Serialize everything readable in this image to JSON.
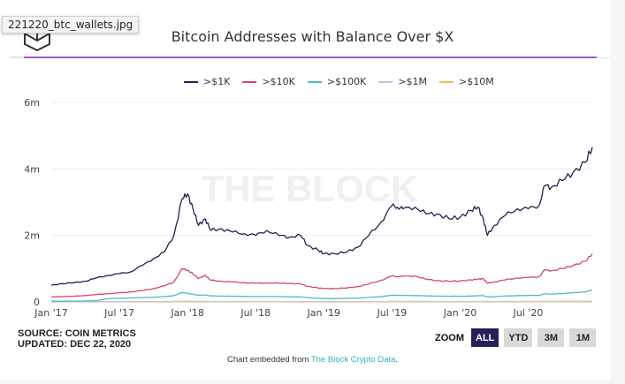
{
  "tooltip": {
    "filename": "221220_btc_wallets.jpg"
  },
  "header": {
    "title": "Bitcoin Addresses with Balance Over $X",
    "logo_icon": "the-block-cube-logo"
  },
  "footer": {
    "source": "SOURCE: COIN METRICS",
    "updated": "UPDATED: DEC 22, 2020",
    "embedded_prefix": "Chart embedded from ",
    "embedded_link": "The Block Crypto Data",
    "embedded_suffix": "."
  },
  "zoom": {
    "label": "ZOOM",
    "buttons": [
      {
        "label": "ALL",
        "active": true
      },
      {
        "label": "YTD",
        "active": false
      },
      {
        "label": "3M",
        "active": false
      },
      {
        "label": "1M",
        "active": false
      }
    ]
  },
  "watermark": "THE BLOCK",
  "chart_data": {
    "type": "line",
    "title": "Bitcoin Addresses with Balance Over $X",
    "xlabel": "",
    "ylabel": "",
    "x_range": [
      "2017-01-01",
      "2020-12-22"
    ],
    "ylim": [
      0,
      6000000
    ],
    "y_ticks": [
      0,
      2000000,
      4000000,
      6000000
    ],
    "y_tick_labels": [
      "0",
      "2m",
      "4m",
      "6m"
    ],
    "x_tick_labels": [
      "Jan '17",
      "Jul '17",
      "Jan '18",
      "Jul '18",
      "Jan '19",
      "Jul '19",
      "Jan '20",
      "Jul '20"
    ],
    "grid": true,
    "legend_position": "top-center",
    "x": [
      2017.0,
      2017.08,
      2017.17,
      2017.25,
      2017.33,
      2017.42,
      2017.5,
      2017.58,
      2017.67,
      2017.75,
      2017.83,
      2017.9,
      2017.96,
      2018.0,
      2018.04,
      2018.08,
      2018.13,
      2018.17,
      2018.25,
      2018.33,
      2018.42,
      2018.5,
      2018.58,
      2018.67,
      2018.75,
      2018.83,
      2018.88,
      2018.96,
      2019.0,
      2019.08,
      2019.17,
      2019.25,
      2019.33,
      2019.42,
      2019.5,
      2019.54,
      2019.58,
      2019.67,
      2019.75,
      2019.83,
      2019.92,
      2020.0,
      2020.08,
      2020.13,
      2020.17,
      2020.2,
      2020.25,
      2020.33,
      2020.42,
      2020.5,
      2020.58,
      2020.62,
      2020.67,
      2020.75,
      2020.83,
      2020.92,
      2020.97
    ],
    "series": [
      {
        "name": ">$1K",
        "color": "#24214f",
        "values": [
          500000,
          550000,
          580000,
          620000,
          720000,
          800000,
          850000,
          900000,
          1100000,
          1300000,
          1500000,
          2000000,
          3100000,
          3250000,
          2800000,
          2300000,
          2500000,
          2150000,
          2200000,
          2100000,
          2050000,
          2000000,
          2150000,
          2000000,
          1950000,
          2000000,
          1700000,
          1550000,
          1450000,
          1450000,
          1500000,
          1650000,
          2000000,
          2400000,
          2900000,
          2850000,
          2800000,
          2850000,
          2650000,
          2650000,
          2500000,
          2550000,
          2750000,
          2850000,
          2500000,
          2000000,
          2300000,
          2600000,
          2800000,
          2800000,
          2900000,
          3500000,
          3450000,
          3650000,
          3900000,
          4200000,
          4650000
        ]
      },
      {
        "name": ">$10K",
        "color": "#d3476b",
        "values": [
          150000,
          160000,
          170000,
          190000,
          220000,
          250000,
          270000,
          300000,
          340000,
          400000,
          480000,
          600000,
          1000000,
          950000,
          850000,
          700000,
          800000,
          650000,
          620000,
          600000,
          580000,
          560000,
          570000,
          560000,
          560000,
          540000,
          470000,
          420000,
          400000,
          400000,
          420000,
          460000,
          540000,
          650000,
          780000,
          760000,
          770000,
          780000,
          680000,
          640000,
          620000,
          630000,
          660000,
          680000,
          700000,
          560000,
          600000,
          660000,
          720000,
          730000,
          760000,
          960000,
          940000,
          1000000,
          1100000,
          1220000,
          1450000
        ]
      },
      {
        "name": ">$100K",
        "color": "#4fbdb9",
        "values": [
          20000,
          22000,
          25000,
          28000,
          35000,
          100000,
          110000,
          120000,
          130000,
          140000,
          160000,
          190000,
          280000,
          260000,
          230000,
          200000,
          210000,
          180000,
          175000,
          170000,
          165000,
          160000,
          165000,
          160000,
          155000,
          150000,
          130000,
          110000,
          100000,
          100000,
          105000,
          115000,
          135000,
          160000,
          200000,
          200000,
          195000,
          195000,
          180000,
          175000,
          170000,
          170000,
          175000,
          185000,
          190000,
          150000,
          160000,
          175000,
          190000,
          195000,
          200000,
          240000,
          235000,
          250000,
          275000,
          300000,
          360000
        ]
      },
      {
        "name": ">$1M",
        "color": "#c7c3e6",
        "values": [
          5000,
          5000,
          5000,
          6000,
          7000,
          8000,
          8000,
          9000,
          10000,
          11000,
          12000,
          14000,
          20000,
          19000,
          17000,
          15000,
          16000,
          14000,
          14000,
          13000,
          13000,
          13000,
          13000,
          13000,
          12000,
          12000,
          11000,
          10000,
          10000,
          10000,
          10000,
          11000,
          12000,
          13000,
          15000,
          15000,
          15000,
          15000,
          14000,
          14000,
          13000,
          13000,
          14000,
          14000,
          15000,
          12000,
          13000,
          14000,
          15000,
          15000,
          16000,
          18000,
          18000,
          19000,
          20000,
          22000,
          26000
        ]
      },
      {
        "name": ">$10M",
        "color": "#e8c54a",
        "values": [
          1000,
          1000,
          1000,
          1000,
          1000,
          1000,
          1000,
          1000,
          1000,
          1000,
          1000,
          1500,
          2000,
          2000,
          1800,
          1500,
          1600,
          1500,
          1500,
          1400,
          1400,
          1400,
          1400,
          1400,
          1300,
          1300,
          1200,
          1100,
          1100,
          1100,
          1100,
          1200,
          1300,
          1400,
          1500,
          1500,
          1500,
          1500,
          1400,
          1400,
          1400,
          1400,
          1400,
          1500,
          1500,
          1300,
          1400,
          1500,
          1500,
          1500,
          1600,
          1700,
          1700,
          1800,
          1900,
          2000,
          2300
        ]
      }
    ]
  }
}
